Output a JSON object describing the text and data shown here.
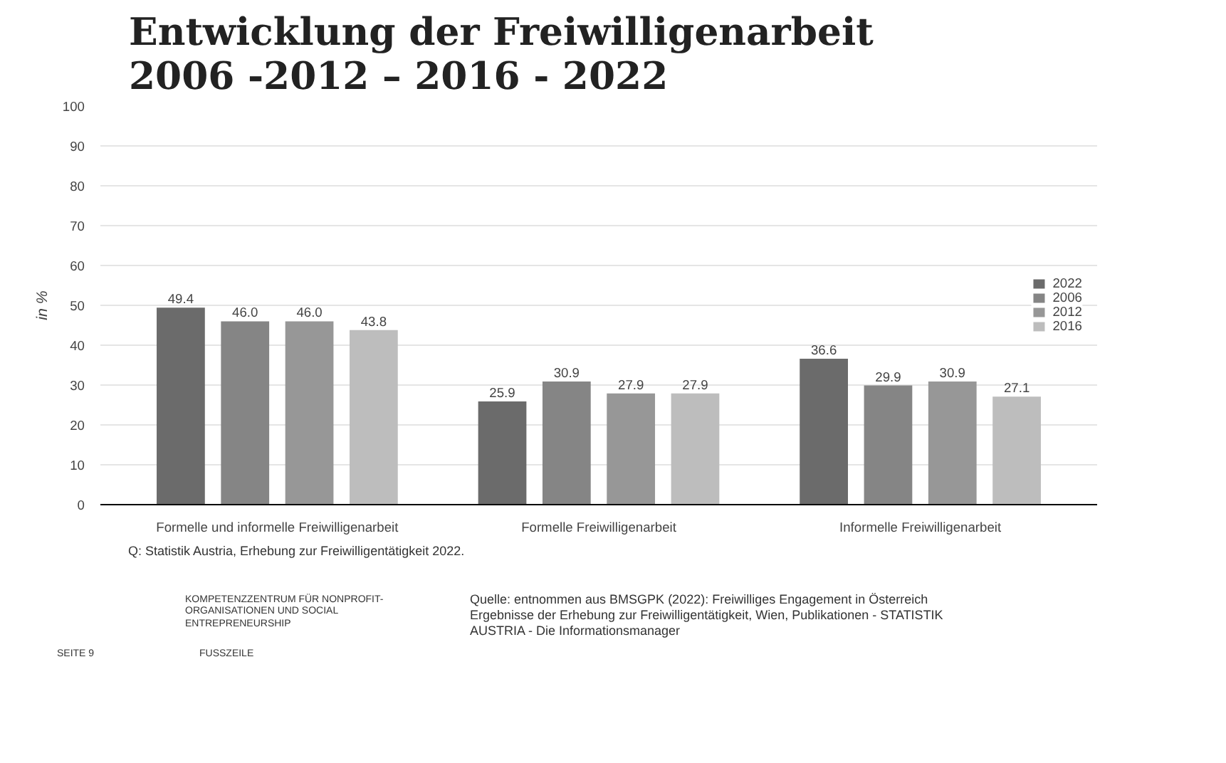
{
  "chart_data": {
    "type": "bar",
    "title": "Entwicklung der Freiwilligenarbeit\n2006 -2012 – 2016 - 2022",
    "ylabel": "in %",
    "categories": [
      "Formelle und informelle Freiwilligenarbeit",
      "Formelle Freiwilligenarbeit",
      "Informelle Freiwilligenarbeit"
    ],
    "series": [
      {
        "name": "2022",
        "color": "#6b6b6b",
        "values": [
          49.4,
          25.9,
          36.6
        ],
        "value_labels": [
          "49.4",
          "25.9",
          "36.6"
        ]
      },
      {
        "name": "2006",
        "color": "#858585",
        "values": [
          46.0,
          30.9,
          29.9
        ],
        "value_labels": [
          "46.0",
          "30.9",
          "29.9"
        ]
      },
      {
        "name": "2012",
        "color": "#979797",
        "values": [
          46.0,
          27.9,
          30.9
        ],
        "value_labels": [
          "46.0",
          "27.9",
          "30.9"
        ]
      },
      {
        "name": "2016",
        "color": "#bdbdbd",
        "values": [
          43.8,
          27.9,
          27.1
        ],
        "value_labels": [
          "43.8",
          "27.9",
          "27.1"
        ]
      }
    ],
    "ylim": [
      0,
      100
    ],
    "yticks": [
      0,
      10,
      20,
      30,
      40,
      50,
      60,
      70,
      80,
      90,
      100
    ],
    "grid": "y",
    "legend": "right",
    "annotations": [
      "Q: Statistik Austria, Erhebung zur Freiwilligentätigkeit 2022.",
      "Quelle: entnommen aus BMSGPK (2022): Freiwilliges Engagement in Österreich Ergebnisse der Erhebung zur Freiwilligentätigkeit, Wien, Publikationen - STATISTIK AUSTRIA - Die Informationsmanager",
      "KOMPETENZZENTRUM FÜR NONPROFIT-ORGANISATIONEN UND SOCIAL ENTREPRENEURSHIP",
      "SEITE 9",
      "FUSSZEILE"
    ]
  }
}
